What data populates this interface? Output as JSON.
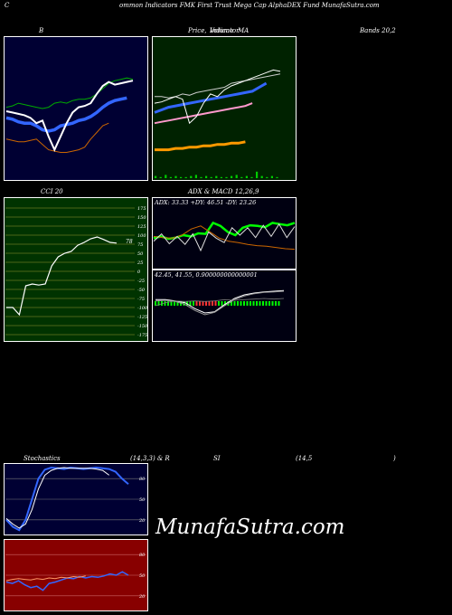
{
  "header": {
    "title_prefix": "C",
    "title": "ommon  Indicators FMK First Trust Mega  Cap AlphaDEX  Fund MunafaSutra.com"
  },
  "panels": {
    "bollinger": {
      "label_left": "B",
      "label_right": "Bands 20,2"
    },
    "price": {
      "label_a": "Price,",
      "label_b": "Volume",
      "label_c": "Indicator",
      "label_d": "MA"
    },
    "cci": {
      "label": "CCI 20"
    },
    "adx": {
      "label": "ADX  & MACD 12,26,9",
      "adx_text": "ADX: 33.33  +DY: 46.51 -DY: 23.26"
    },
    "macd": {
      "macd_text": "42.45,  41.55,  0.900000000000001"
    },
    "stoch": {
      "label_a": "Stochastics",
      "label_b": "(14,3,3) & R",
      "label_c": "SI",
      "label_d": "(14,5",
      "label_e": ")"
    }
  },
  "watermark": "MunafaSutra.com",
  "colors": {
    "bollinger_bg": "#000033",
    "price_bg": "#002200",
    "cci_bg": "#003300",
    "stoch_bg": "#000033",
    "rsi_bg": "#880000",
    "band_green": "#00aa00",
    "band_blue": "#3366ff",
    "band_orange": "#cc6600",
    "price_white": "#ffffff"
  },
  "chart_data": [
    {
      "type": "line",
      "panel": "bollinger",
      "ylim": [
        0,
        100
      ],
      "series": [
        {
          "values": [
            52,
            53,
            55,
            54,
            53,
            52,
            51,
            52,
            55,
            56,
            55,
            57,
            58,
            58,
            59,
            62,
            66,
            70,
            72,
            73,
            74,
            73
          ]
        },
        {
          "values": [
            44,
            43,
            41,
            40,
            40,
            38,
            35,
            34,
            35,
            38,
            39,
            40,
            42,
            43,
            45,
            48,
            52,
            55,
            57,
            58,
            59
          ]
        },
        {
          "values": [
            28,
            27,
            26,
            26,
            27,
            28,
            24,
            20,
            19,
            18,
            18,
            19,
            20,
            22,
            28,
            33,
            38,
            40
          ]
        },
        {
          "values": [
            49,
            48,
            47,
            46,
            44,
            40,
            42,
            30,
            20,
            30,
            40,
            48,
            52,
            53,
            55,
            62,
            68,
            71,
            69,
            70,
            71,
            72
          ]
        }
      ]
    },
    {
      "type": "line",
      "panel": "price",
      "ylim": [
        0,
        100
      ],
      "series": [
        {
          "values": [
            60,
            60,
            59,
            60,
            62,
            61,
            63,
            64,
            65,
            66,
            67,
            70,
            71,
            72,
            73,
            74,
            75,
            76,
            77
          ]
        },
        {
          "values": [
            48,
            50,
            52,
            53,
            54,
            55,
            56,
            57,
            58,
            59,
            60,
            61,
            62,
            63,
            64,
            67,
            70
          ]
        },
        {
          "values": [
            40,
            41,
            42,
            43,
            44,
            45,
            46,
            47,
            48,
            49,
            50,
            51,
            52,
            53,
            55
          ]
        },
        {
          "values": [
            20,
            20,
            20,
            21,
            21,
            22,
            22,
            23,
            23,
            24,
            24,
            25,
            25,
            26
          ]
        },
        {
          "values": [
            55,
            56,
            58,
            60,
            58,
            40,
            45,
            55,
            62,
            60,
            65,
            68,
            70,
            72,
            74,
            76,
            78,
            80,
            79
          ]
        },
        {
          "values": [
            2,
            1,
            3,
            1,
            2,
            1,
            1,
            2,
            3,
            1,
            2,
            1,
            2,
            1,
            1,
            2,
            3,
            1,
            2,
            1,
            6,
            2,
            1,
            2,
            1
          ]
        }
      ]
    },
    {
      "type": "line",
      "panel": "cci",
      "ylim": [
        -175,
        175
      ],
      "tick_labels": [
        "175",
        "150",
        "125",
        "100",
        "75",
        "50",
        "25",
        "0",
        "-25",
        "-50",
        "-75",
        "-100",
        "-125",
        "-150",
        "-175"
      ],
      "last_value_label": "78",
      "series": [
        {
          "values": [
            -100,
            -100,
            -120,
            -40,
            -35,
            -38,
            -35,
            15,
            40,
            50,
            55,
            72,
            80,
            90,
            95,
            88,
            80,
            78
          ]
        }
      ]
    },
    {
      "type": "line",
      "panel": "adx",
      "ylim": [
        0,
        100
      ],
      "series": [
        {
          "values": [
            45,
            48,
            44,
            46,
            50,
            48,
            53,
            52,
            70,
            65,
            55,
            50,
            62,
            66,
            65,
            63,
            70,
            68,
            66,
            70
          ]
        },
        {
          "values": [
            48,
            46,
            45,
            50,
            60,
            65,
            55,
            45,
            40,
            38,
            35,
            33,
            32,
            30,
            28,
            27
          ]
        },
        {
          "values": [
            40,
            52,
            36,
            48,
            35,
            52,
            25,
            55,
            45,
            38,
            62,
            50,
            62,
            46,
            66,
            48,
            68,
            46,
            64
          ]
        }
      ]
    },
    {
      "type": "line",
      "panel": "macd",
      "ylim": [
        -10,
        50
      ],
      "series": [
        {
          "values": [
            30,
            30,
            28,
            25,
            15,
            8,
            10,
            22,
            32,
            38,
            41,
            43,
            44,
            45
          ]
        },
        {
          "values": [
            28,
            29,
            27,
            22,
            12,
            5,
            9,
            20,
            30,
            36,
            40,
            42,
            43,
            44
          ]
        },
        {
          "values": [
            20,
            25,
            28,
            27,
            28,
            27,
            28,
            30,
            29,
            30,
            31,
            32,
            31,
            32
          ]
        }
      ]
    },
    {
      "type": "line",
      "panel": "stochastics",
      "ylim": [
        0,
        100
      ],
      "tick_labels": [
        "80",
        "50",
        "20"
      ],
      "series": [
        {
          "values": [
            20,
            10,
            5,
            20,
            50,
            80,
            93,
            96,
            95,
            94,
            96,
            95,
            94,
            95,
            96,
            95,
            94,
            90,
            80,
            72
          ]
        },
        {
          "values": [
            22,
            14,
            8,
            14,
            35,
            65,
            85,
            92,
            95,
            96,
            95,
            95,
            95,
            95,
            94,
            92,
            85
          ]
        }
      ]
    },
    {
      "type": "line",
      "panel": "rsi",
      "ylim": [
        0,
        100
      ],
      "tick_labels": [
        "80",
        "50",
        "20"
      ],
      "series": [
        {
          "values": [
            40,
            38,
            42,
            36,
            32,
            34,
            28,
            38,
            40,
            43,
            46,
            45,
            48,
            46,
            48,
            47,
            49,
            52,
            50,
            55,
            50
          ]
        },
        {
          "values": [
            42,
            44,
            45,
            44,
            43,
            45,
            44,
            46,
            45,
            47,
            46,
            48,
            47,
            49
          ]
        }
      ]
    }
  ]
}
